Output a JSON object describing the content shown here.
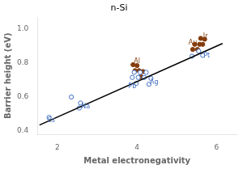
{
  "chart_data": {
    "type": "scatter",
    "title": "n-Si",
    "xlabel": "Metal electronegativity",
    "ylabel": "Barrier height (eV)",
    "xlim": [
      1.5,
      6.5
    ],
    "ylim": [
      0.38,
      1.07
    ],
    "xticks": [
      2,
      4,
      6
    ],
    "yticks": [
      0.4,
      0.6,
      0.8,
      {
        "value": 1.0,
        "label": "1.0"
      }
    ],
    "grid": false,
    "series": [
      {
        "type": "line",
        "color": "#000000",
        "marker": "none",
        "x": [
          1.55,
          6.15
        ],
        "values": [
          0.435,
          0.915
        ]
      },
      {
        "type": "scatter",
        "color": "#4472C4",
        "marker": "open_circle",
        "x": [
          1.79,
          2.35,
          2.55,
          2.58,
          3.88,
          3.93,
          3.98,
          4.03,
          4.08,
          4.18,
          4.23,
          4.3,
          4.35,
          5.38,
          5.55,
          5.65
        ],
        "values": [
          0.48,
          0.6,
          0.535,
          0.565,
          0.715,
          0.745,
          0.68,
          0.715,
          0.745,
          0.715,
          0.745,
          0.675,
          0.71,
          0.84,
          0.87,
          0.845
        ]
      },
      {
        "type": "scatter",
        "color": "#843C0C",
        "marker": "circle",
        "x": [
          3.9,
          3.95,
          4.0,
          4.05,
          4.1,
          4.15,
          5.4,
          5.45,
          5.52,
          5.57,
          5.6,
          5.65,
          5.7
        ],
        "values": [
          0.79,
          0.755,
          0.785,
          0.755,
          0.72,
          0.75,
          0.88,
          0.91,
          0.88,
          0.91,
          0.945,
          0.91,
          0.94
        ]
      }
    ],
    "annotations": [
      {
        "text": "Cs",
        "x": 1.84,
        "y": 0.46,
        "color": "#4472C4"
      },
      {
        "text": "Na",
        "x": 2.71,
        "y": 0.545,
        "color": "#4472C4"
      },
      {
        "text": "Pb",
        "x": 3.88,
        "y": 0.66,
        "color": "#4472C4"
      },
      {
        "text": "Ag",
        "x": 4.43,
        "y": 0.685,
        "color": "#4472C4"
      },
      {
        "text": "Pt",
        "x": 5.75,
        "y": 0.845,
        "color": "#4472C4"
      },
      {
        "text": "Al",
        "x": 4.0,
        "y": 0.81,
        "color": "#843C0C"
      },
      {
        "text": "Au",
        "x": 5.4,
        "y": 0.92,
        "color": "#843C0C"
      },
      {
        "text": "Ir",
        "x": 5.72,
        "y": 0.955,
        "color": "#843C0C"
      }
    ]
  }
}
